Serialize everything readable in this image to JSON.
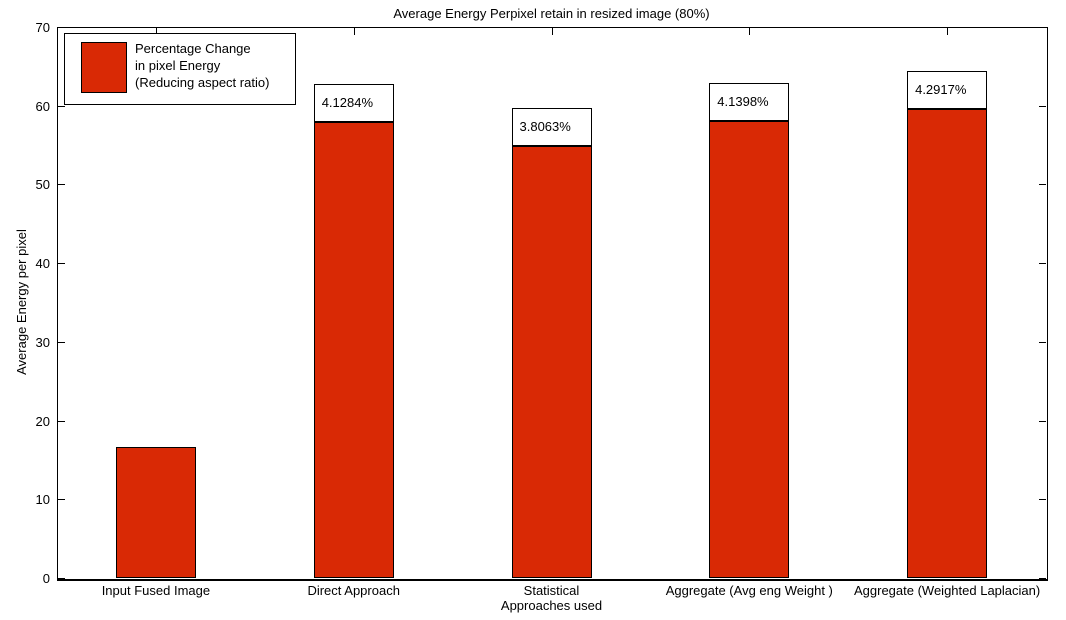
{
  "chart_data": {
    "type": "bar",
    "title": "Average Energy Perpixel retain in resized image (80%)",
    "xlabel": "Approaches used",
    "ylabel": "Average Energy per pixel",
    "ylim": [
      0,
      70
    ],
    "yticks": [
      0,
      10,
      20,
      30,
      40,
      50,
      60,
      70
    ],
    "categories": [
      "Input Fused Image",
      "Direct Approach",
      "Statistical",
      "Aggregate (Avg eng Weight )",
      "Aggregate (Weighted Laplacian)"
    ],
    "series": [
      {
        "name": "Percentage Change in pixel Energy (Reducing aspect ratio)",
        "values": [
          16.7,
          57.9,
          54.9,
          58.0,
          59.6
        ]
      }
    ],
    "bar_annotations": [
      null,
      "4.1284%",
      "3.8063%",
      "4.1398%",
      "4.2917%"
    ],
    "legend": {
      "lines": [
        "Percentage Change",
        "in pixel Energy",
        "(Reducing aspect ratio)"
      ],
      "position": "top-left",
      "swatch_color": "#d92905"
    },
    "colors": {
      "bar_fill": "#d92905",
      "bar_edge": "#000000",
      "axis": "#000000",
      "background": "#ffffff",
      "text": "#000000"
    },
    "grid": false,
    "tick_direction": "in",
    "box": true
  }
}
